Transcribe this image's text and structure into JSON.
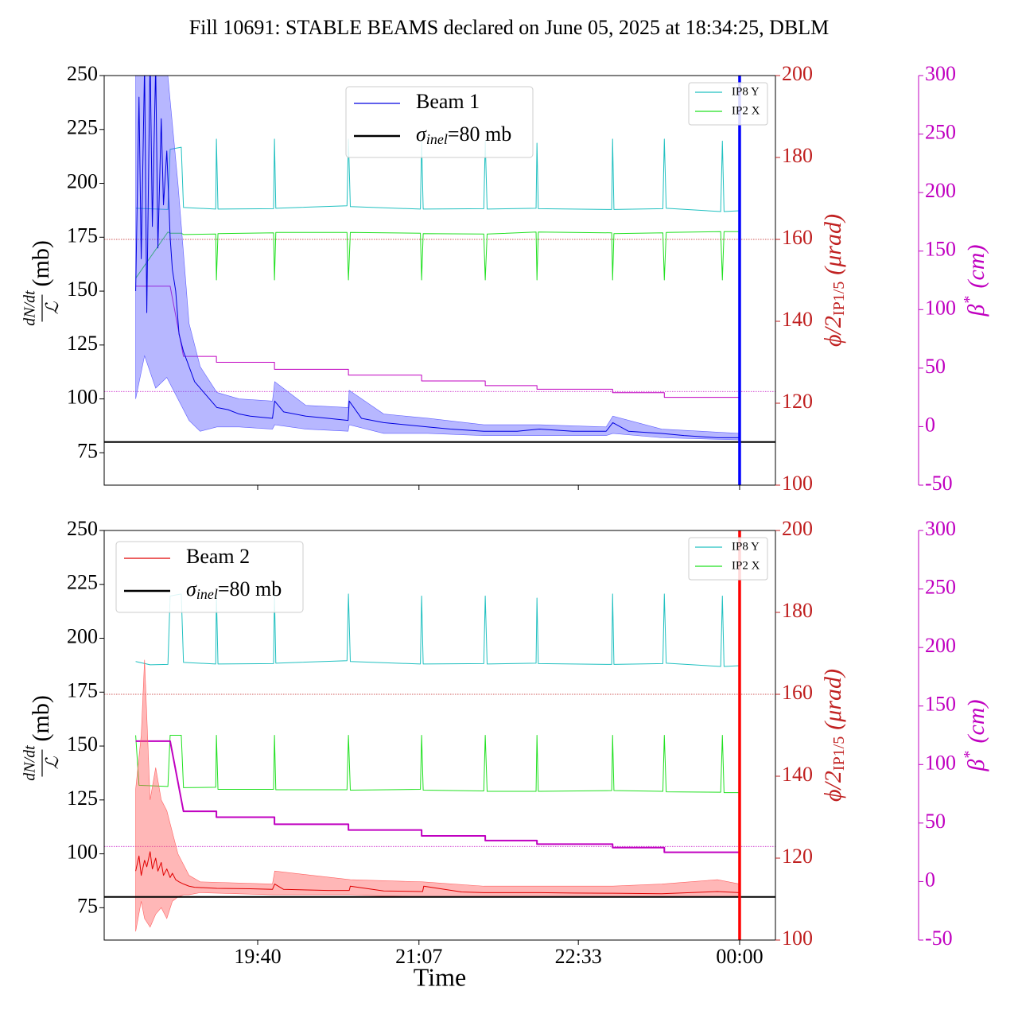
{
  "title": "Fill 10691: STABLE BEAMS declared on June 05, 2025 at 18:34:25, DBLM",
  "chart_data": [
    {
      "type": "line",
      "xlim": [
        18.287,
        24.322
      ],
      "xticks": [
        19.667,
        21.117,
        22.55,
        24.0
      ],
      "ylim": [
        60,
        250
      ],
      "yticks": [
        75,
        100,
        125,
        150,
        175,
        200,
        225,
        250
      ],
      "y2lim": [
        100,
        200
      ],
      "y2ticks": [
        100,
        120,
        140,
        160,
        180,
        200
      ],
      "y3lim": [
        -50,
        300
      ],
      "y3ticks": [
        -50,
        0,
        50,
        100,
        150,
        200,
        250,
        300
      ],
      "y_label": {
        "numerator": "dN/dt",
        "denominator": "ℒ",
        "unit": "(mb)"
      },
      "y2_label": {
        "main": "ϕ/2",
        "sub": "IP1/5",
        "unit": "(μrad)",
        "color": "#c02020"
      },
      "y3_label": {
        "main": "β",
        "sup": "*",
        "unit": "(cm)",
        "color": "#c000c0"
      },
      "legend": "upper center",
      "legend2": "upper right",
      "reference": {
        "value": 80,
        "color": "#000000",
        "label": {
          "symbol": "σ",
          "sub": "inel",
          "rest": "=80 mb"
        }
      },
      "ref_lines": [
        {
          "axis": "y2",
          "value": 160,
          "color": "#c02020"
        },
        {
          "axis": "y3",
          "value": 30,
          "color": "#c000c0"
        }
      ],
      "vline": {
        "x": 24.0,
        "color": "#0000ff"
      },
      "series": [
        {
          "name": "IP8 Y",
          "color": "#20c0c0",
          "axis": "y2",
          "legend": "small",
          "width": 1,
          "x": [
            18.57,
            18.86,
            18.88,
            18.98,
            19.0,
            19.29,
            19.296,
            19.31,
            19.81,
            19.818,
            19.83,
            20.47,
            20.483,
            20.5,
            21.13,
            21.141,
            21.155,
            21.7,
            21.713,
            21.73,
            22.17,
            22.178,
            22.19,
            22.85,
            22.858,
            22.87,
            23.31,
            23.323,
            23.34,
            23.83,
            23.845,
            23.86,
            24.0
          ],
          "values": [
            167.6,
            167.3,
            182,
            182.5,
            167.8,
            167.4,
            184.5,
            167.4,
            167.5,
            184.5,
            167.6,
            168.2,
            184.5,
            168.0,
            167.4,
            184,
            167.4,
            167.5,
            184,
            167.4,
            167.6,
            183.5,
            167.5,
            167.3,
            184.5,
            167.3,
            167.5,
            184.5,
            167.6,
            166.8,
            184,
            166.8,
            167.0
          ]
        },
        {
          "name": "IP2 X",
          "color": "#20e020",
          "axis": "y2",
          "legend": "small",
          "width": 1,
          "x": [
            18.57,
            18.86,
            18.88,
            18.98,
            19.0,
            19.29,
            19.296,
            19.31,
            19.81,
            19.818,
            19.83,
            20.47,
            20.483,
            20.5,
            21.13,
            21.141,
            21.155,
            21.7,
            21.713,
            21.73,
            22.17,
            22.178,
            22.19,
            22.85,
            22.858,
            22.87,
            23.31,
            23.323,
            23.34,
            23.83,
            23.845,
            23.86,
            24.0
          ],
          "values": [
            150.5,
            161.8,
            161.5,
            161.5,
            161.2,
            161.3,
            150.1,
            161.4,
            161.6,
            150.1,
            161.7,
            161.7,
            150.1,
            161.7,
            161.5,
            150.1,
            161.4,
            161.3,
            150.1,
            161.3,
            161.8,
            150.1,
            161.8,
            161.6,
            150.1,
            161.4,
            161.6,
            150.1,
            161.7,
            161.9,
            150.1,
            161.9,
            161.9
          ]
        },
        {
          "color": "#c000c0",
          "axis": "y3",
          "width": 1,
          "x": [
            18.57,
            18.88,
            19.0,
            19.296,
            19.296,
            19.818,
            19.818,
            20.483,
            20.483,
            21.141,
            21.141,
            21.713,
            21.713,
            22.178,
            22.178,
            22.858,
            22.858,
            23.323,
            23.323,
            24.0
          ],
          "values": [
            120,
            120,
            60,
            60,
            55,
            55,
            49,
            49,
            44,
            44,
            39,
            39,
            35,
            35,
            32,
            32,
            29,
            29,
            25,
            25
          ]
        },
        {
          "name": "Beam 1",
          "color": "#0000e0",
          "axis": "y",
          "legend": "main",
          "width": 1,
          "band": {
            "color": "#6060ff",
            "x": [
              18.57,
              18.65,
              18.75,
              18.85,
              18.95,
              19.05,
              19.15,
              19.3,
              19.5,
              19.8,
              19.82,
              20.1,
              20.48,
              20.49,
              20.8,
              21.2,
              21.7,
              22.2,
              22.8,
              22.86,
              23.3,
              24.0
            ],
            "lower": [
              100,
              120,
              105,
              110,
              100,
              90,
              85,
              87,
              87,
              86,
              88,
              86,
              85,
              88,
              84,
              84,
              83,
              83,
              83,
              84,
              82,
              81
            ],
            "upper": [
              255,
              255,
              255,
              255,
              200,
              135,
              115,
              103,
              100,
              99,
              108,
              97,
              96,
              104,
              93,
              91,
              88,
              88,
              87,
              92,
              86,
              84
            ]
          },
          "x": [
            18.57,
            18.6,
            18.62,
            18.65,
            18.67,
            18.7,
            18.72,
            18.75,
            18.77,
            18.8,
            18.82,
            18.85,
            18.88,
            18.9,
            18.93,
            18.96,
            19.0,
            19.05,
            19.1,
            19.2,
            19.3,
            19.4,
            19.5,
            19.6,
            19.8,
            19.82,
            19.9,
            20.1,
            20.3,
            20.48,
            20.49,
            20.6,
            20.8,
            21.0,
            21.2,
            21.4,
            21.7,
            22.0,
            22.2,
            22.5,
            22.8,
            22.86,
            23.0,
            23.3,
            23.5,
            23.8,
            24.0
          ],
          "values": [
            150,
            240,
            165,
            255,
            140,
            260,
            180,
            255,
            170,
            230,
            190,
            215,
            175,
            160,
            150,
            130,
            122,
            115,
            108,
            102,
            96,
            95,
            93,
            92,
            91,
            99,
            94,
            92,
            91,
            90,
            99,
            91,
            89,
            88,
            87,
            86,
            85,
            85,
            86,
            85,
            85,
            89,
            85,
            84,
            83,
            82,
            82
          ]
        }
      ]
    },
    {
      "type": "line",
      "xlim": [
        18.287,
        24.322
      ],
      "xticks": [
        {
          "value": 19.667,
          "label": "19:40"
        },
        {
          "value": 21.117,
          "label": "21:07"
        },
        {
          "value": 22.55,
          "label": "22:33"
        },
        {
          "value": 24.0,
          "label": "00:00"
        }
      ],
      "x_label": "Time",
      "ylim": [
        60,
        250
      ],
      "yticks": [
        75,
        100,
        125,
        150,
        175,
        200,
        225,
        250
      ],
      "y2lim": [
        100,
        200
      ],
      "y2ticks": [
        100,
        120,
        140,
        160,
        180,
        200
      ],
      "y3lim": [
        -50,
        300
      ],
      "y3ticks": [
        -50,
        0,
        50,
        100,
        150,
        200,
        250,
        300
      ],
      "y_label": {
        "numerator": "dN/dt",
        "denominator": "ℒ",
        "unit": "(mb)"
      },
      "y2_label": {
        "main": "ϕ/2",
        "sub": "IP1/5",
        "unit": "(μrad)",
        "color": "#c02020"
      },
      "y3_label": {
        "main": "β",
        "sup": "*",
        "unit": "(cm)",
        "color": "#c000c0"
      },
      "legend": "upper left",
      "legend2": "upper right",
      "reference": {
        "value": 80,
        "color": "#000000",
        "label": {
          "symbol": "σ",
          "sub": "inel",
          "rest": "=80 mb"
        }
      },
      "ref_lines": [
        {
          "axis": "y2",
          "value": 160,
          "color": "#c02020"
        },
        {
          "axis": "y3",
          "value": 30,
          "color": "#c000c0"
        }
      ],
      "vline": {
        "x": 24.0,
        "color": "#ff0000"
      },
      "series": [
        {
          "name": "IP8 Y",
          "color": "#20c0c0",
          "axis": "y2",
          "legend": "small",
          "width": 1,
          "x": [
            18.57,
            18.7,
            18.86,
            18.88,
            18.98,
            19.0,
            19.29,
            19.296,
            19.31,
            19.81,
            19.818,
            19.83,
            20.47,
            20.483,
            20.5,
            21.13,
            21.141,
            21.155,
            21.7,
            21.713,
            21.73,
            22.17,
            22.178,
            22.19,
            22.85,
            22.858,
            22.87,
            23.31,
            23.323,
            23.34,
            23.83,
            23.845,
            23.86,
            24.0
          ],
          "values": [
            168,
            167.2,
            167.3,
            184,
            184.5,
            167.8,
            167.4,
            184.5,
            167.4,
            167.5,
            184.5,
            167.6,
            168.2,
            184.5,
            168.0,
            167.4,
            184,
            167.4,
            167.5,
            184,
            167.4,
            167.6,
            183.5,
            167.5,
            167.3,
            184.5,
            167.3,
            167.5,
            184.5,
            167.6,
            166.8,
            184,
            166.8,
            167.0
          ]
        },
        {
          "name": "IP2 X",
          "color": "#20e020",
          "axis": "y2",
          "legend": "small",
          "width": 1,
          "x": [
            18.57,
            18.6,
            18.86,
            18.88,
            18.98,
            19.0,
            19.29,
            19.296,
            19.31,
            19.81,
            19.818,
            19.83,
            20.47,
            20.483,
            20.5,
            21.13,
            21.141,
            21.155,
            21.7,
            21.713,
            21.73,
            22.17,
            22.178,
            22.19,
            22.85,
            22.858,
            22.87,
            23.31,
            23.323,
            23.34,
            23.83,
            23.845,
            23.86,
            24.0
          ],
          "values": [
            150,
            137.8,
            137.5,
            150,
            150,
            137.2,
            137.3,
            150,
            136.8,
            136.8,
            150,
            136.7,
            136.7,
            150,
            136.6,
            136.8,
            150,
            136.6,
            136.4,
            150,
            136.3,
            136.3,
            150,
            136.3,
            136.5,
            150,
            136.5,
            136.3,
            150,
            136.2,
            136.1,
            150,
            136.0,
            136.0
          ]
        },
        {
          "color": "#c000c0",
          "axis": "y3",
          "width": 2,
          "x": [
            18.57,
            18.88,
            19.0,
            19.296,
            19.296,
            19.818,
            19.818,
            20.483,
            20.483,
            21.141,
            21.141,
            21.713,
            21.713,
            22.178,
            22.178,
            22.858,
            22.858,
            23.323,
            23.323,
            24.0
          ],
          "values": [
            120,
            120,
            60,
            60,
            55,
            55,
            49,
            49,
            44,
            44,
            39,
            39,
            35,
            35,
            32,
            32,
            29,
            29,
            25,
            25
          ]
        },
        {
          "name": "Beam 2",
          "color": "#e00000",
          "axis": "y",
          "legend": "main",
          "width": 1,
          "band": {
            "color": "#ff6060",
            "x": [
              18.57,
              18.62,
              18.65,
              18.7,
              18.75,
              18.8,
              18.85,
              18.9,
              18.95,
              19.0,
              19.05,
              19.15,
              19.8,
              19.82,
              20.5,
              21.15,
              21.7,
              22.86,
              23.3,
              23.8,
              24.0
            ],
            "lower": [
              64,
              78,
              70,
              66,
              72,
              75,
              70,
              78,
              80,
              81,
              81,
              82,
              81,
              81,
              81,
              80,
              80,
              80,
              80,
              80,
              80
            ],
            "upper": [
              130,
              155,
              190,
              125,
              140,
              125,
              120,
              110,
              100,
              95,
              90,
              87,
              86,
              92,
              88,
              87,
              85,
              85,
              86,
              88,
              86
            ]
          },
          "x": [
            18.57,
            18.6,
            18.62,
            18.65,
            18.67,
            18.7,
            18.72,
            18.75,
            18.77,
            18.8,
            18.82,
            18.85,
            18.88,
            18.9,
            18.93,
            18.96,
            19.0,
            19.05,
            19.1,
            19.3,
            19.6,
            19.8,
            19.82,
            19.9,
            20.3,
            20.49,
            20.5,
            20.8,
            21.15,
            21.16,
            21.5,
            21.7,
            22.2,
            22.5,
            22.86,
            23.3,
            23.8,
            24.0
          ],
          "values": [
            92,
            99,
            90,
            97,
            94,
            101,
            93,
            98,
            92,
            96,
            90,
            93,
            89,
            91,
            88,
            87,
            86,
            85,
            84.5,
            84,
            83.8,
            83.5,
            86,
            83.5,
            83,
            83,
            85,
            82.8,
            82.5,
            85,
            82.3,
            82,
            82,
            81.8,
            81.7,
            81.5,
            82.5,
            82
          ]
        }
      ]
    }
  ]
}
